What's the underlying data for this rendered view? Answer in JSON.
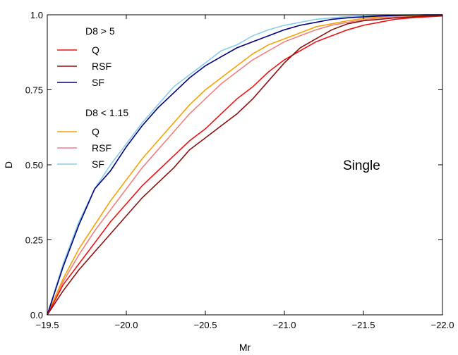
{
  "chart_data": {
    "type": "line",
    "xlabel": "Mr",
    "ylabel": "D",
    "xlim": [
      -19.5,
      -22.0
    ],
    "ylim": [
      0.0,
      1.0
    ],
    "x_ticks": [
      "−19.5",
      "−20.0",
      "−20.5",
      "−21.0",
      "−21.5",
      "−22.0"
    ],
    "y_ticks": [
      "0.0",
      "0.25",
      "0.50",
      "0.75",
      "1.0"
    ],
    "grid": false,
    "legend_location": "upper-left",
    "annotation": "Single",
    "legend_groups": [
      {
        "title": "D8 > 5",
        "entries": [
          "Q",
          "RSF",
          "SF"
        ]
      },
      {
        "title": "D8 < 1.15",
        "entries": [
          "Q",
          "RSF",
          "SF"
        ]
      }
    ],
    "series": [
      {
        "name": "Q",
        "group": "D8 > 5",
        "color": "#ee1111",
        "x": [
          -19.5,
          -19.6,
          -19.7,
          -19.8,
          -19.9,
          -20.0,
          -20.1,
          -20.2,
          -20.3,
          -20.4,
          -20.5,
          -20.6,
          -20.7,
          -20.8,
          -20.9,
          -21.0,
          -21.1,
          -21.2,
          -21.3,
          -21.4,
          -21.5,
          -21.6,
          -21.7,
          -21.8,
          -21.9,
          -22.0
        ],
        "values": [
          0.0,
          0.1,
          0.17,
          0.24,
          0.31,
          0.37,
          0.43,
          0.48,
          0.53,
          0.58,
          0.62,
          0.67,
          0.72,
          0.76,
          0.81,
          0.85,
          0.88,
          0.91,
          0.93,
          0.95,
          0.965,
          0.975,
          0.985,
          0.99,
          0.993,
          0.996
        ]
      },
      {
        "name": "RSF",
        "group": "D8 > 5",
        "color": "#8b1010",
        "x": [
          -19.5,
          -19.6,
          -19.7,
          -19.8,
          -19.9,
          -20.0,
          -20.1,
          -20.2,
          -20.3,
          -20.4,
          -20.5,
          -20.6,
          -20.7,
          -20.8,
          -20.9,
          -21.0,
          -21.1,
          -21.2,
          -21.3,
          -21.4,
          -21.5,
          -21.6,
          -21.7,
          -21.8,
          -21.9,
          -22.0
        ],
        "values": [
          0.0,
          0.08,
          0.15,
          0.21,
          0.27,
          0.33,
          0.39,
          0.44,
          0.49,
          0.55,
          0.59,
          0.63,
          0.67,
          0.72,
          0.78,
          0.84,
          0.89,
          0.92,
          0.95,
          0.97,
          0.98,
          0.985,
          0.99,
          0.993,
          0.996,
          0.998
        ]
      },
      {
        "name": "SF",
        "group": "D8 > 5",
        "color": "#000080",
        "x": [
          -19.5,
          -19.6,
          -19.7,
          -19.8,
          -19.9,
          -20.0,
          -20.1,
          -20.2,
          -20.3,
          -20.4,
          -20.5,
          -20.6,
          -20.7,
          -20.8,
          -20.9,
          -21.0,
          -21.1,
          -21.2,
          -21.3,
          -21.4,
          -21.5,
          -21.6,
          -21.7,
          -21.8,
          -21.9,
          -22.0
        ],
        "values": [
          0.0,
          0.16,
          0.3,
          0.42,
          0.48,
          0.56,
          0.63,
          0.69,
          0.74,
          0.79,
          0.83,
          0.86,
          0.89,
          0.91,
          0.93,
          0.95,
          0.965,
          0.975,
          0.985,
          0.99,
          0.993,
          0.996,
          0.998,
          0.999,
          1.0,
          1.0
        ]
      },
      {
        "name": "Q",
        "group": "D8 < 1.15",
        "color": "#f5a300",
        "x": [
          -19.5,
          -19.6,
          -19.7,
          -19.8,
          -19.9,
          -20.0,
          -20.1,
          -20.2,
          -20.3,
          -20.4,
          -20.5,
          -20.6,
          -20.7,
          -20.8,
          -20.9,
          -21.0,
          -21.1,
          -21.2,
          -21.3,
          -21.4,
          -21.5,
          -21.6,
          -21.7,
          -21.8,
          -21.9,
          -22.0
        ],
        "values": [
          0.0,
          0.12,
          0.22,
          0.3,
          0.38,
          0.45,
          0.52,
          0.58,
          0.64,
          0.7,
          0.75,
          0.79,
          0.83,
          0.87,
          0.9,
          0.92,
          0.94,
          0.96,
          0.97,
          0.98,
          0.988,
          0.993,
          0.996,
          0.998,
          0.999,
          1.0
        ]
      },
      {
        "name": "RSF",
        "group": "D8 < 1.15",
        "color": "#f08080",
        "x": [
          -19.5,
          -19.6,
          -19.7,
          -19.8,
          -19.9,
          -20.0,
          -20.1,
          -20.2,
          -20.3,
          -20.4,
          -20.5,
          -20.6,
          -20.7,
          -20.8,
          -20.9,
          -21.0,
          -21.1,
          -21.2,
          -21.3,
          -21.4,
          -21.5,
          -21.6,
          -21.7,
          -21.8,
          -21.9,
          -22.0
        ],
        "values": [
          0.0,
          0.11,
          0.2,
          0.28,
          0.35,
          0.42,
          0.49,
          0.55,
          0.61,
          0.67,
          0.72,
          0.77,
          0.81,
          0.85,
          0.88,
          0.91,
          0.93,
          0.95,
          0.965,
          0.975,
          0.983,
          0.99,
          0.994,
          0.997,
          0.999,
          1.0
        ]
      },
      {
        "name": "SF",
        "group": "D8 < 1.15",
        "color": "#87ceeb",
        "x": [
          -19.5,
          -19.6,
          -19.7,
          -19.8,
          -19.9,
          -20.0,
          -20.1,
          -20.2,
          -20.3,
          -20.4,
          -20.5,
          -20.6,
          -20.7,
          -20.8,
          -20.9,
          -21.0,
          -21.1,
          -21.2,
          -21.3,
          -21.4,
          -21.5,
          -21.6,
          -21.7,
          -21.8,
          -21.9,
          -22.0
        ],
        "values": [
          0.0,
          0.17,
          0.31,
          0.42,
          0.5,
          0.57,
          0.64,
          0.7,
          0.76,
          0.8,
          0.84,
          0.88,
          0.9,
          0.93,
          0.95,
          0.965,
          0.975,
          0.985,
          0.99,
          0.994,
          0.996,
          0.998,
          0.999,
          1.0,
          1.0,
          1.0
        ]
      }
    ]
  }
}
